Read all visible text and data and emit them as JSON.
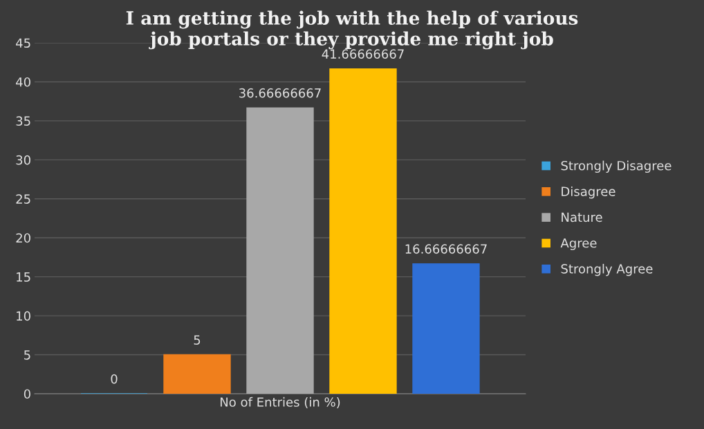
{
  "chart_data": {
    "type": "bar",
    "title": "I am getting the job with the help of various\njob portals or they provide me right job",
    "categories": [
      "No of Entries (in %)"
    ],
    "series": [
      {
        "name": "Strongly Disagree",
        "color": "#3ba3dc",
        "values": [
          0
        ]
      },
      {
        "name": "Disagree",
        "color": "#f07f1c",
        "values": [
          5
        ]
      },
      {
        "name": "Nature",
        "color": "#a8a8a8",
        "values": [
          36.66666667
        ]
      },
      {
        "name": "Agree",
        "color": "#ffc000",
        "values": [
          41.66666667
        ]
      },
      {
        "name": "Strongly Agree",
        "color": "#2f6fd6",
        "values": [
          16.66666667
        ]
      }
    ],
    "ylim": [
      0,
      45
    ],
    "yticks": [
      0,
      5,
      10,
      15,
      20,
      25,
      30,
      35,
      40,
      45
    ],
    "grid": "y",
    "legend": "right",
    "data_labels": true
  }
}
